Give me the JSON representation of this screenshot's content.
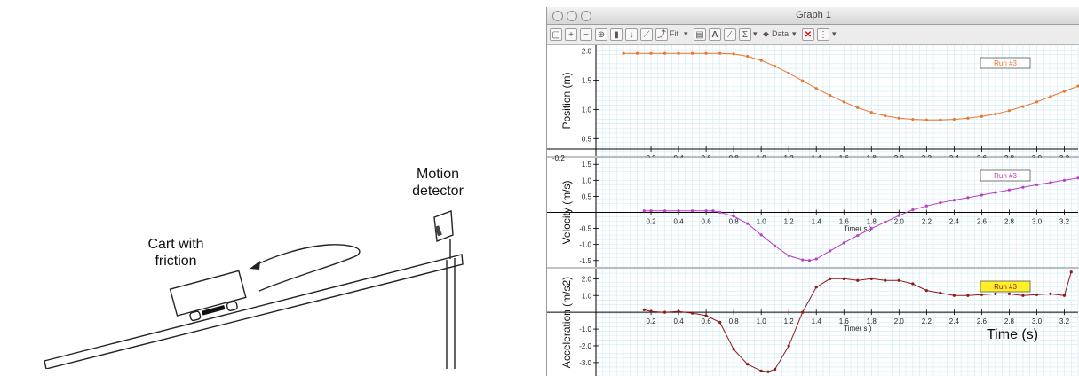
{
  "diagram": {
    "motion_detector_label": [
      "Motion",
      "detector"
    ],
    "cart_label": [
      "Cart with",
      "friction"
    ]
  },
  "window": {
    "title": "Graph 1",
    "toolbar": {
      "fit_label": "Fit",
      "data_label": "Data"
    }
  },
  "chart_data": [
    {
      "type": "line",
      "ylabel": "Position (m)",
      "xlabel": "Time( s )",
      "legend": "Run #3",
      "color": "#e8772e",
      "xticks": [
        "-0.2",
        "0.2",
        "0.4",
        "0.6",
        "0.8",
        "1.0",
        "1.2",
        "1.4",
        "1.6",
        "1.8",
        "2.0",
        "2.2",
        "2.4",
        "2.6",
        "2.8",
        "3.0",
        "3.2"
      ],
      "yticks": [
        "0.5",
        "1.0",
        "1.5",
        "2.0"
      ],
      "xlim": [
        -0.2,
        3.3
      ],
      "ylim": [
        0.2,
        2.1
      ],
      "x": [
        0.0,
        0.1,
        0.2,
        0.3,
        0.4,
        0.5,
        0.6,
        0.7,
        0.8,
        0.9,
        1.0,
        1.1,
        1.2,
        1.3,
        1.4,
        1.5,
        1.6,
        1.7,
        1.8,
        1.9,
        2.0,
        2.1,
        2.2,
        2.3,
        2.4,
        2.5,
        2.6,
        2.7,
        2.8,
        2.9,
        3.0,
        3.1,
        3.2,
        3.3
      ],
      "y": [
        1.96,
        1.96,
        1.96,
        1.96,
        1.96,
        1.96,
        1.96,
        1.96,
        1.95,
        1.91,
        1.84,
        1.74,
        1.62,
        1.49,
        1.36,
        1.24,
        1.13,
        1.03,
        0.95,
        0.89,
        0.85,
        0.83,
        0.82,
        0.82,
        0.83,
        0.85,
        0.88,
        0.92,
        0.98,
        1.05,
        1.13,
        1.22,
        1.31,
        1.4
      ],
      "grid": true,
      "legend_position": "top-right"
    },
    {
      "type": "line",
      "ylabel": "Velocity (m/s)",
      "xlabel": "Time( s )",
      "legend": "Run #3",
      "color": "#b53fc4",
      "xticks": [
        "0.2",
        "0.4",
        "0.6",
        "0.8",
        "1.0",
        "1.2",
        "1.4",
        "1.6",
        "1.8",
        "2.0",
        "2.2",
        "2.4",
        "2.6",
        "2.8",
        "3.0",
        "3.2"
      ],
      "yticks": [
        "-1.5",
        "-1.0",
        "-0.5",
        "0.5",
        "1.0",
        "1.5"
      ],
      "xlim": [
        -0.2,
        3.3
      ],
      "ylim": [
        -1.7,
        1.7
      ],
      "x": [
        0.15,
        0.2,
        0.3,
        0.4,
        0.5,
        0.6,
        0.65,
        0.7,
        0.8,
        0.9,
        1.0,
        1.1,
        1.2,
        1.3,
        1.35,
        1.4,
        1.5,
        1.6,
        1.7,
        1.8,
        1.9,
        2.0,
        2.1,
        2.2,
        2.3,
        2.4,
        2.5,
        2.6,
        2.7,
        2.8,
        2.9,
        3.0,
        3.1,
        3.2,
        3.3
      ],
      "y": [
        0.05,
        0.05,
        0.05,
        0.05,
        0.05,
        0.05,
        0.05,
        0.0,
        -0.12,
        -0.35,
        -0.7,
        -1.05,
        -1.35,
        -1.48,
        -1.5,
        -1.45,
        -1.2,
        -0.95,
        -0.72,
        -0.5,
        -0.3,
        -0.1,
        0.08,
        0.2,
        0.3,
        0.38,
        0.46,
        0.54,
        0.62,
        0.7,
        0.78,
        0.86,
        0.93,
        1.0,
        1.07
      ],
      "grid": true,
      "legend_position": "top-right"
    },
    {
      "type": "line",
      "ylabel": "Acceleration (m/s2)",
      "xlabel": "Time( s )",
      "legend": "Run #3",
      "color": "#8b1a1a",
      "xticks": [
        "0.2",
        "0.4",
        "0.6",
        "0.8",
        "1.0",
        "1.2",
        "1.4",
        "1.6",
        "1.8",
        "2.0",
        "2.2",
        "2.4",
        "2.6",
        "2.8",
        "3.0",
        "3.2"
      ],
      "yticks": [
        "-3.0",
        "-2.0",
        "-1.0",
        "1.0",
        "2.0"
      ],
      "xlim": [
        -0.2,
        3.3
      ],
      "ylim": [
        -3.8,
        2.6
      ],
      "x": [
        0.15,
        0.2,
        0.3,
        0.4,
        0.5,
        0.6,
        0.7,
        0.8,
        0.9,
        1.0,
        1.05,
        1.1,
        1.2,
        1.3,
        1.4,
        1.5,
        1.6,
        1.7,
        1.8,
        1.9,
        2.0,
        2.1,
        2.2,
        2.3,
        2.4,
        2.5,
        2.6,
        2.7,
        2.8,
        2.9,
        3.0,
        3.1,
        3.2,
        3.25
      ],
      "y": [
        0.15,
        0.05,
        0.0,
        0.05,
        -0.05,
        -0.2,
        -0.6,
        -2.2,
        -3.1,
        -3.5,
        -3.55,
        -3.4,
        -2.0,
        0.0,
        1.5,
        2.0,
        2.0,
        1.9,
        2.0,
        1.9,
        1.9,
        1.7,
        1.3,
        1.15,
        1.0,
        1.0,
        1.05,
        1.1,
        1.1,
        1.0,
        1.05,
        1.1,
        1.0,
        2.4
      ],
      "grid": true,
      "legend_position": "top-right",
      "annotation": "Time (s)"
    }
  ]
}
